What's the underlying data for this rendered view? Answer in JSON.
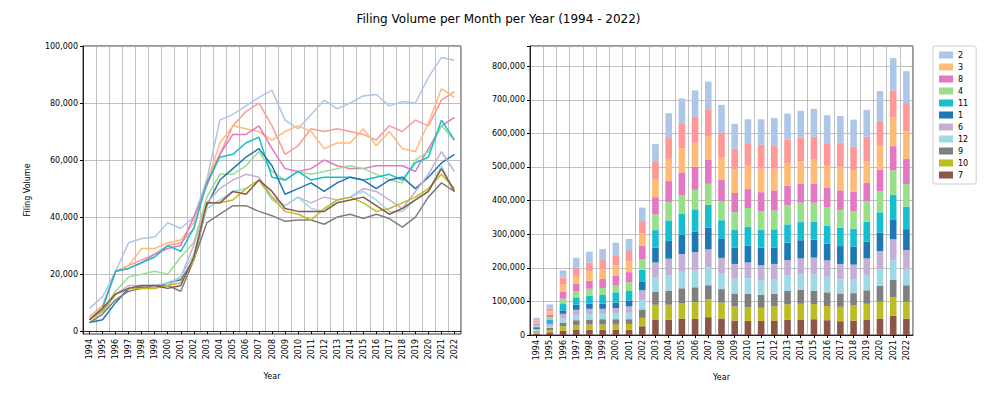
{
  "title": "Filing Volume per Month per Year (1994 - 2022)",
  "chart_data": [
    {
      "type": "line",
      "xlabel": "Year",
      "ylabel": "Filing Volume",
      "grid": true,
      "categories": [
        "1994",
        "1995",
        "1996",
        "1997",
        "1998",
        "1999",
        "2000",
        "2001",
        "2002",
        "2003",
        "2004",
        "2005",
        "2006",
        "2007",
        "2008",
        "2009",
        "2010",
        "2011",
        "2012",
        "2013",
        "2014",
        "2015",
        "2016",
        "2017",
        "2018",
        "2019",
        "2020",
        "2021",
        "2022"
      ],
      "ylim": [
        -1000,
        100000
      ],
      "yticks": [
        0,
        {
          "value": 20000,
          "label": "20,000"
        },
        {
          "value": 40000,
          "label": "40,000"
        },
        {
          "value": 60000,
          "label": "60,000"
        },
        {
          "value": 80000,
          "label": "80,000"
        },
        {
          "value": 100000,
          "label": "100,000"
        }
      ],
      "series": [
        {
          "name": "2",
          "color": "#aec7e8",
          "values": [
            8000,
            12000,
            21000,
            31000,
            32500,
            33000,
            38000,
            36000,
            40000,
            53000,
            74000,
            76000,
            79000,
            82000,
            84500,
            74000,
            71000,
            76000,
            81000,
            78000,
            80000,
            82500,
            83000,
            79000,
            80500,
            80000,
            89000,
            96000,
            95000
          ]
        },
        {
          "color": "#ff9896",
          "values": [
            5000,
            9000,
            21000,
            23000,
            25000,
            27000,
            30000,
            31000,
            36000,
            53000,
            62000,
            72000,
            77000,
            80000,
            72000,
            62000,
            65000,
            71000,
            70000,
            71000,
            70000,
            69000,
            67000,
            72000,
            70000,
            74000,
            72000,
            81000,
            84000
          ]
        },
        {
          "name": "3",
          "color": "#ffbb78",
          "values": [
            5000,
            9000,
            21000,
            23000,
            29000,
            29000,
            31000,
            32000,
            38000,
            52000,
            66000,
            72000,
            71000,
            70000,
            67000,
            70000,
            72000,
            70000,
            64000,
            66000,
            66000,
            71000,
            65000,
            70000,
            64000,
            63000,
            73000,
            85000,
            82000
          ]
        },
        {
          "name": "8",
          "color": "#e377c2",
          "values": [
            4000,
            8000,
            21000,
            22000,
            24000,
            27000,
            29000,
            30000,
            40000,
            51000,
            62000,
            69000,
            69000,
            72000,
            64000,
            57000,
            56000,
            57000,
            60000,
            58000,
            57000,
            57000,
            58000,
            58000,
            58000,
            56000,
            64000,
            72000,
            75000
          ]
        },
        {
          "name": "4",
          "color": "#98df8a",
          "values": [
            4000,
            7000,
            14000,
            19000,
            20000,
            21000,
            20000,
            26000,
            31000,
            47000,
            55000,
            55000,
            58000,
            63000,
            56000,
            53000,
            56000,
            55000,
            56000,
            57000,
            58000,
            57000,
            55000,
            53000,
            52000,
            60000,
            63000,
            72000,
            67000
          ]
        },
        {
          "name": "11",
          "color": "#17becf",
          "values": [
            4000,
            8000,
            21000,
            22000,
            24000,
            26000,
            30000,
            28000,
            36000,
            52000,
            61000,
            62000,
            66000,
            68000,
            54000,
            53000,
            56000,
            53000,
            54000,
            54000,
            54000,
            53000,
            54000,
            55000,
            53000,
            59000,
            61000,
            74000,
            67000
          ]
        },
        {
          "name": "1",
          "color": "#1f77b4",
          "values": [
            3000,
            4000,
            10000,
            15000,
            15500,
            15000,
            17000,
            18000,
            25000,
            44000,
            53000,
            57000,
            61000,
            64000,
            58000,
            48000,
            50000,
            52000,
            49000,
            52000,
            54000,
            53000,
            50000,
            53000,
            54000,
            50000,
            54000,
            59000,
            62000
          ]
        },
        {
          "name": "6",
          "color": "#c5b0d5",
          "values": [
            4000,
            7000,
            13000,
            16000,
            16000,
            15000,
            16000,
            19000,
            30000,
            45000,
            50000,
            53000,
            55000,
            54000,
            47000,
            44000,
            47000,
            45000,
            47000,
            46000,
            47000,
            50000,
            49000,
            46000,
            43000,
            49000,
            55000,
            63000,
            56000
          ]
        },
        {
          "name": "12",
          "color": "#9edae5",
          "values": [
            3000,
            6000,
            13000,
            15000,
            16000,
            16000,
            17000,
            19000,
            27000,
            43000,
            46000,
            49000,
            50000,
            53000,
            46000,
            44000,
            47000,
            43000,
            42000,
            46000,
            47000,
            49000,
            46000,
            42000,
            42000,
            46000,
            49000,
            58000,
            49000
          ]
        },
        {
          "name": "9",
          "color": "#7f7f7f",
          "values": [
            3000,
            6000,
            11000,
            14000,
            15000,
            16000,
            16000,
            14000,
            25000,
            38000,
            41000,
            44000,
            44000,
            42000,
            40500,
            38500,
            39000,
            39000,
            37500,
            40000,
            41000,
            39500,
            41000,
            39500,
            36500,
            40000,
            47000,
            52000,
            49000
          ]
        },
        {
          "name": "10",
          "color": "#bcbd22",
          "values": [
            4000,
            7000,
            13000,
            15000,
            15000,
            15000,
            16000,
            17000,
            25000,
            45000,
            45000,
            46000,
            50000,
            53000,
            47000,
            42000,
            41000,
            39000,
            43000,
            46000,
            47000,
            45000,
            42000,
            43000,
            45000,
            47000,
            50000,
            55000,
            50000
          ]
        },
        {
          "name": "7",
          "color": "#8c564b",
          "values": [
            4000,
            8000,
            13000,
            15000,
            16000,
            16000,
            15000,
            16000,
            26000,
            45000,
            45000,
            49000,
            48000,
            53000,
            49000,
            43000,
            42000,
            42000,
            42000,
            45000,
            46000,
            47000,
            44000,
            41000,
            43000,
            46000,
            49000,
            57000,
            49000
          ]
        }
      ]
    },
    {
      "type": "bar",
      "stacked": true,
      "xlabel": "Year",
      "grid": true,
      "legend": "right",
      "categories": [
        "1994",
        "1995",
        "1996",
        "1997",
        "1998",
        "1999",
        "2000",
        "2001",
        "2002",
        "2003",
        "2004",
        "2005",
        "2006",
        "2007",
        "2008",
        "2009",
        "2010",
        "2011",
        "2012",
        "2013",
        "2014",
        "2015",
        "2016",
        "2017",
        "2018",
        "2019",
        "2020",
        "2021",
        "2022"
      ],
      "ylim": [
        0,
        860000
      ],
      "yticks": [
        0,
        {
          "value": 100000,
          "label": "100,000"
        },
        {
          "value": 200000,
          "label": "200,000"
        },
        {
          "value": 300000,
          "label": "300,000"
        },
        {
          "value": 400000,
          "label": "400,000"
        },
        {
          "value": 500000,
          "label": "500,000"
        },
        {
          "value": 600000,
          "label": "600,000"
        },
        {
          "value": 700000,
          "label": "700,000"
        },
        {
          "value": 800000,
          "label": "800,000"
        }
      ],
      "series": [
        {
          "name": "2",
          "color": "#aec7e8",
          "values": [
            8000,
            12000,
            21000,
            31000,
            32500,
            33000,
            38000,
            36000,
            40000,
            53000,
            74000,
            76000,
            79000,
            82000,
            84500,
            74000,
            71000,
            76000,
            81000,
            78000,
            80000,
            82500,
            83000,
            79000,
            80500,
            80000,
            89000,
            96000,
            95000
          ]
        },
        {
          "color": "#ff9896",
          "values": [
            5000,
            9000,
            21000,
            23000,
            25000,
            27000,
            30000,
            31000,
            36000,
            53000,
            62000,
            72000,
            77000,
            80000,
            72000,
            62000,
            65000,
            71000,
            70000,
            71000,
            70000,
            69000,
            67000,
            72000,
            70000,
            74000,
            72000,
            81000,
            84000
          ]
        },
        {
          "name": "3",
          "color": "#ffbb78",
          "values": [
            5000,
            9000,
            21000,
            23000,
            29000,
            29000,
            31000,
            32000,
            38000,
            52000,
            66000,
            72000,
            71000,
            70000,
            67000,
            70000,
            72000,
            70000,
            64000,
            66000,
            66000,
            71000,
            65000,
            70000,
            64000,
            63000,
            73000,
            85000,
            82000
          ]
        },
        {
          "name": "8",
          "color": "#e377c2",
          "values": [
            4000,
            8000,
            21000,
            22000,
            24000,
            27000,
            29000,
            30000,
            40000,
            51000,
            62000,
            69000,
            69000,
            72000,
            64000,
            57000,
            56000,
            57000,
            60000,
            58000,
            57000,
            57000,
            58000,
            58000,
            58000,
            56000,
            64000,
            72000,
            75000
          ]
        },
        {
          "name": "4",
          "color": "#98df8a",
          "values": [
            4000,
            7000,
            14000,
            19000,
            20000,
            21000,
            20000,
            26000,
            31000,
            47000,
            55000,
            55000,
            58000,
            63000,
            56000,
            53000,
            56000,
            55000,
            56000,
            57000,
            58000,
            57000,
            55000,
            53000,
            52000,
            60000,
            63000,
            72000,
            67000
          ]
        },
        {
          "name": "11",
          "color": "#17becf",
          "values": [
            4000,
            8000,
            21000,
            22000,
            24000,
            26000,
            30000,
            28000,
            36000,
            52000,
            61000,
            62000,
            66000,
            68000,
            54000,
            53000,
            56000,
            53000,
            54000,
            54000,
            54000,
            53000,
            54000,
            55000,
            53000,
            59000,
            61000,
            74000,
            67000
          ]
        },
        {
          "name": "1",
          "color": "#1f77b4",
          "values": [
            3000,
            4000,
            10000,
            15000,
            15500,
            15000,
            17000,
            18000,
            25000,
            44000,
            53000,
            57000,
            61000,
            64000,
            58000,
            48000,
            50000,
            52000,
            49000,
            52000,
            54000,
            53000,
            50000,
            53000,
            54000,
            50000,
            54000,
            59000,
            62000
          ]
        },
        {
          "name": "6",
          "color": "#c5b0d5",
          "values": [
            4000,
            7000,
            13000,
            16000,
            16000,
            15000,
            16000,
            19000,
            30000,
            45000,
            50000,
            53000,
            55000,
            54000,
            47000,
            44000,
            47000,
            45000,
            47000,
            46000,
            47000,
            50000,
            49000,
            46000,
            43000,
            49000,
            55000,
            63000,
            56000
          ]
        },
        {
          "name": "12",
          "color": "#9edae5",
          "values": [
            3000,
            6000,
            13000,
            15000,
            16000,
            16000,
            17000,
            19000,
            27000,
            43000,
            46000,
            49000,
            50000,
            53000,
            46000,
            44000,
            47000,
            43000,
            42000,
            46000,
            47000,
            49000,
            46000,
            42000,
            42000,
            46000,
            49000,
            58000,
            49000
          ]
        },
        {
          "name": "9",
          "color": "#7f7f7f",
          "values": [
            3000,
            6000,
            11000,
            14000,
            15000,
            16000,
            16000,
            14000,
            25000,
            38000,
            41000,
            44000,
            44000,
            42000,
            40500,
            38500,
            39000,
            39000,
            37500,
            40000,
            41000,
            39500,
            41000,
            39500,
            36500,
            40000,
            47000,
            52000,
            49000
          ]
        },
        {
          "name": "10",
          "color": "#bcbd22",
          "values": [
            4000,
            7000,
            13000,
            15000,
            15000,
            15000,
            16000,
            17000,
            25000,
            45000,
            45000,
            46000,
            50000,
            53000,
            47000,
            42000,
            41000,
            39000,
            43000,
            46000,
            47000,
            45000,
            42000,
            43000,
            45000,
            47000,
            50000,
            55000,
            50000
          ]
        },
        {
          "name": "7",
          "color": "#8c564b",
          "values": [
            4000,
            8000,
            13000,
            15000,
            16000,
            16000,
            15000,
            16000,
            26000,
            45000,
            45000,
            49000,
            48000,
            53000,
            49000,
            43000,
            42000,
            42000,
            42000,
            45000,
            46000,
            47000,
            44000,
            41000,
            43000,
            46000,
            49000,
            57000,
            49000
          ]
        }
      ]
    }
  ]
}
